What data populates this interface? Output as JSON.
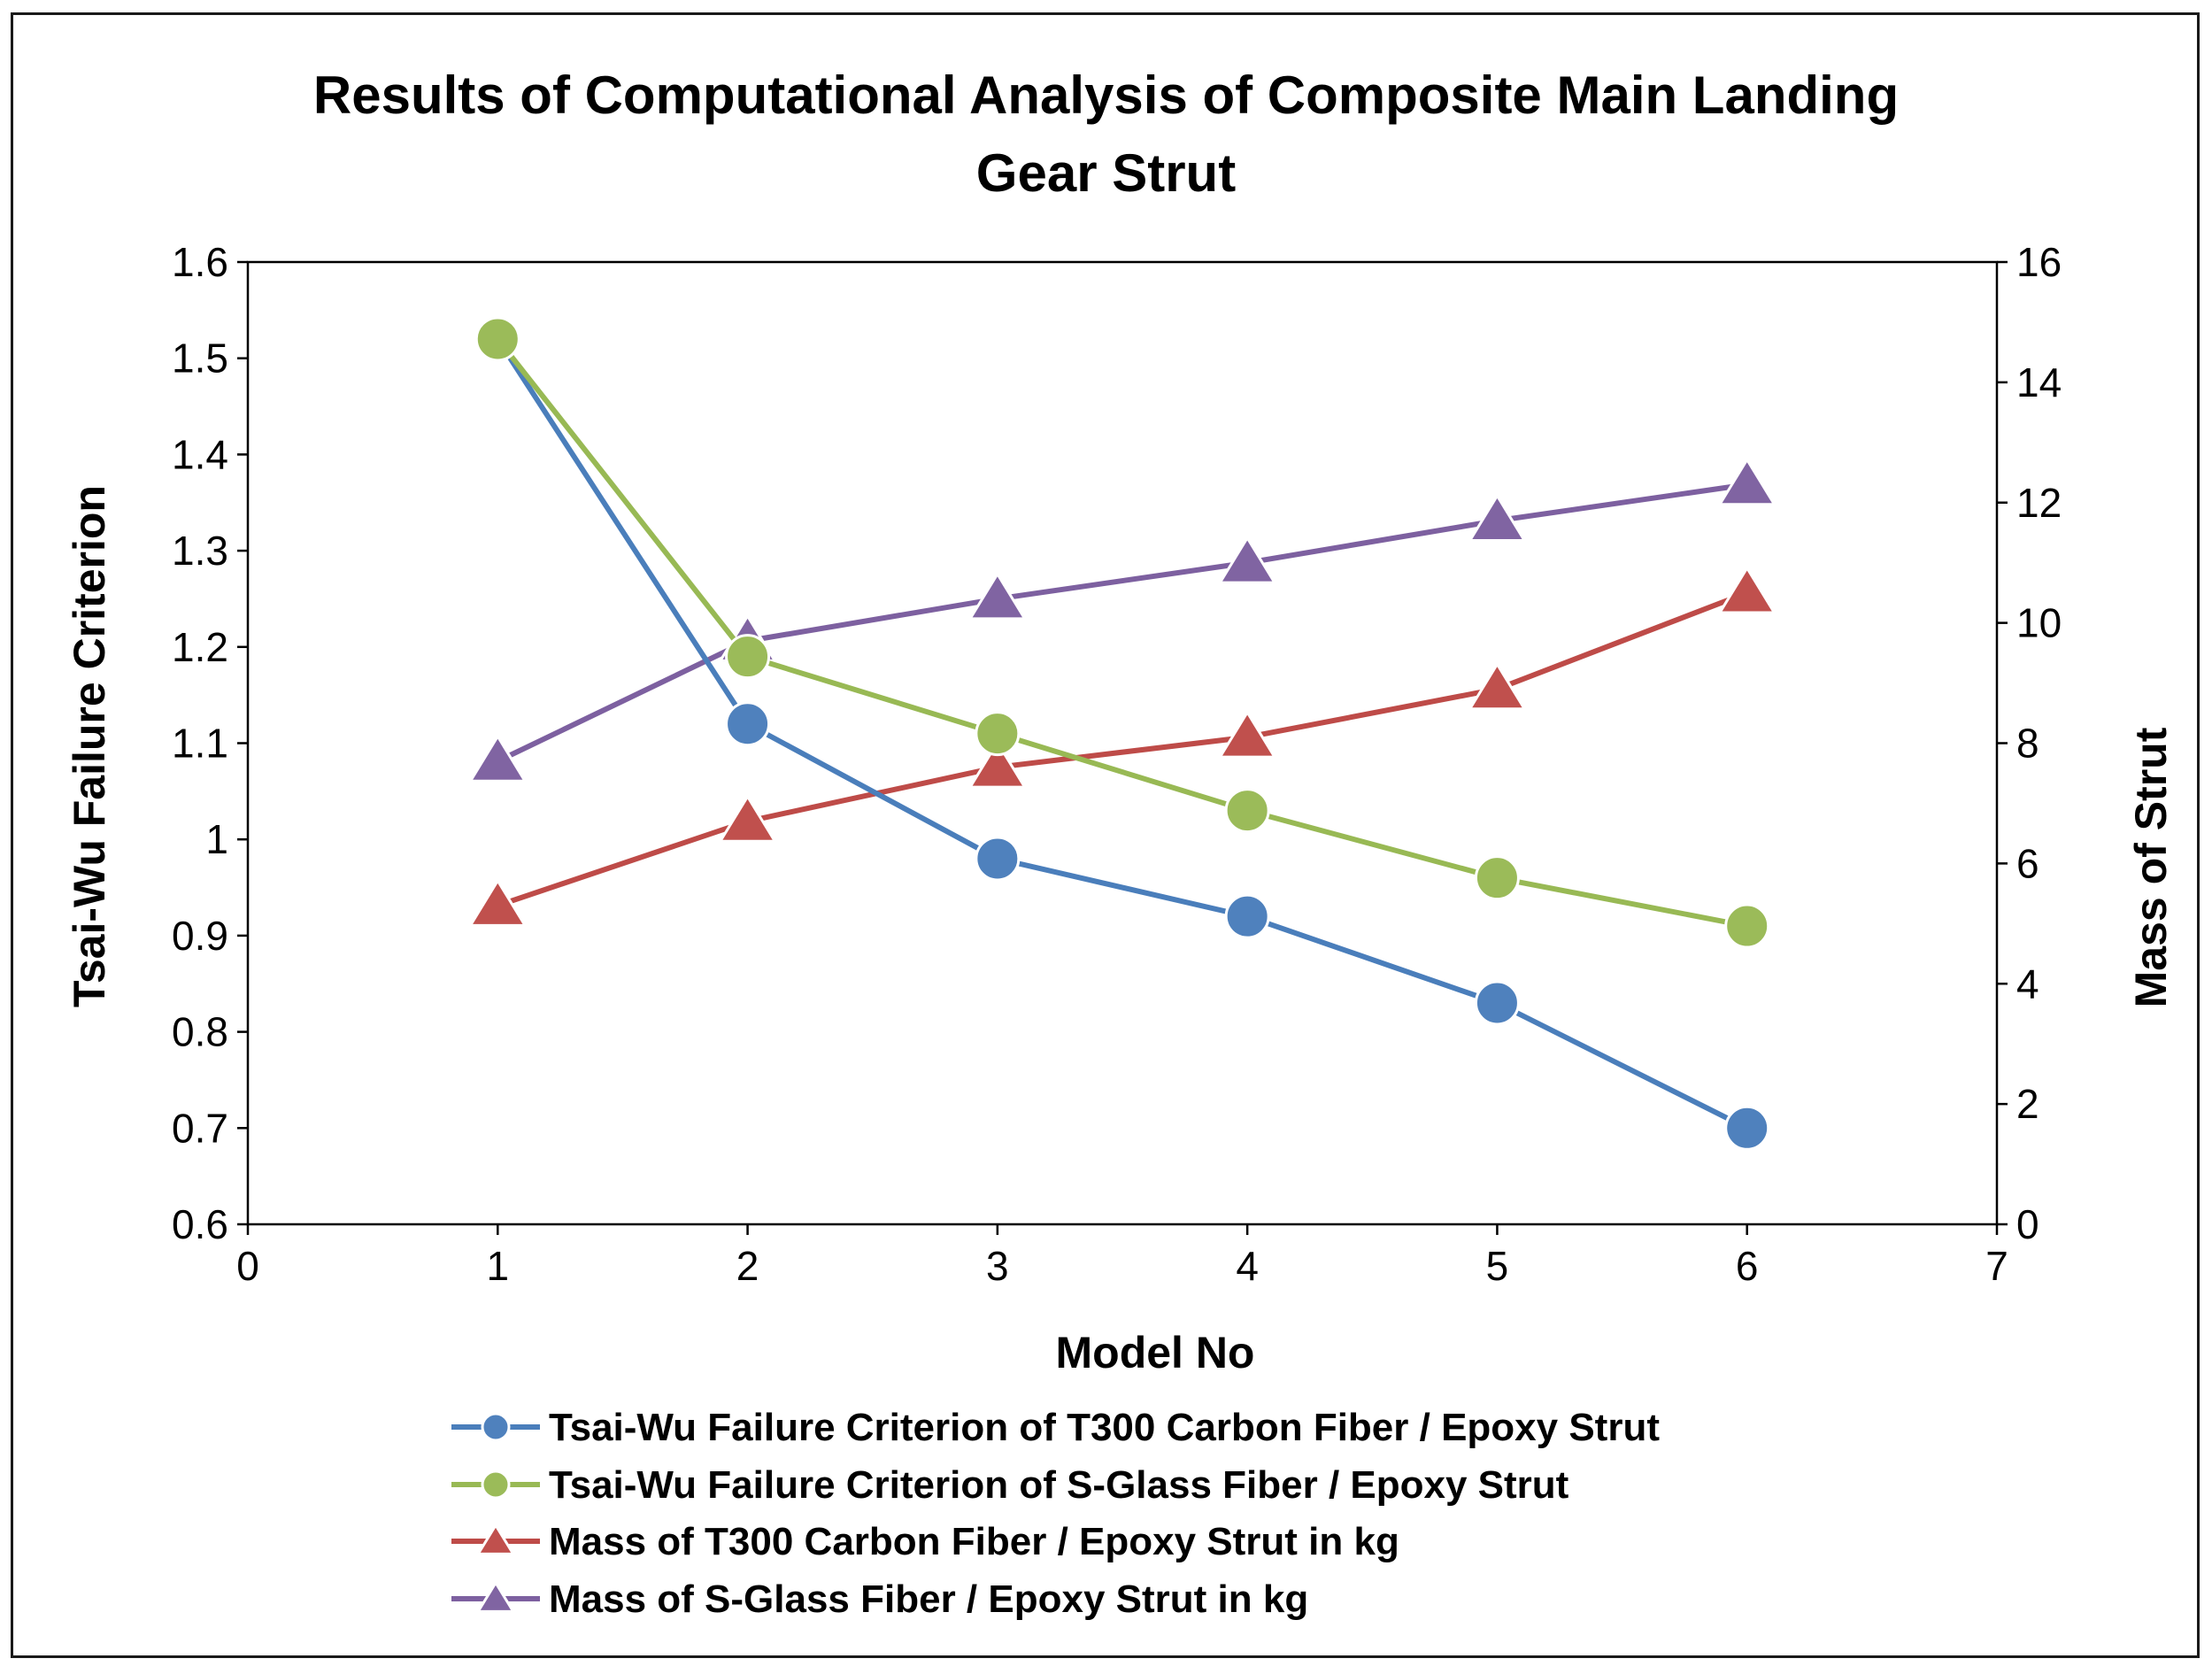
{
  "chart_data": {
    "type": "line",
    "title_line1": "Results of Computational Analysis of Composite Main Landing",
    "title_line2": "Gear Strut",
    "xlabel": "Model No",
    "ylabel": "Tsai-Wu Failure Criterion",
    "y2label": "Mass of Strut",
    "xlim": [
      0,
      7
    ],
    "ylim": [
      0.6,
      1.6
    ],
    "y2lim": [
      0,
      16
    ],
    "xticks": [
      "0",
      "1",
      "2",
      "3",
      "4",
      "5",
      "6",
      "7"
    ],
    "yticks": [
      "0.6",
      "0.7",
      "0.8",
      "0.9",
      "1",
      "1.1",
      "1.2",
      "1.3",
      "1.4",
      "1.5",
      "1.6"
    ],
    "y2ticks": [
      "0",
      "2",
      "4",
      "6",
      "8",
      "10",
      "12",
      "14",
      "16"
    ],
    "grid": false,
    "legend_position": "bottom",
    "x": [
      1,
      2,
      3,
      4,
      5,
      6
    ],
    "series": [
      {
        "name": "Tsai-Wu Failure Criterion of T300 Carbon Fiber / Epoxy Strut",
        "axis": "left",
        "marker": "circle",
        "color": "#4a7ebb",
        "marker_color": "#4f81bd",
        "values": [
          1.52,
          1.12,
          0.98,
          0.92,
          0.83,
          0.7
        ]
      },
      {
        "name": "Tsai-Wu Failure Criterion of S-Glass Fiber / Epoxy Strut",
        "axis": "left",
        "marker": "circle",
        "color": "#98b954",
        "marker_color": "#9bbb59",
        "values": [
          1.52,
          1.19,
          1.11,
          1.03,
          0.96,
          0.91
        ]
      },
      {
        "name": "Mass of T300 Carbon Fiber / Epoxy Strut in kg",
        "axis": "right",
        "marker": "triangle",
        "color": "#be4b48",
        "marker_color": "#c0504d",
        "values": [
          5.3,
          6.7,
          7.6,
          8.1,
          8.9,
          10.5
        ]
      },
      {
        "name": "Mass of S-Glass Fiber / Epoxy Strut in kg",
        "axis": "right",
        "marker": "triangle",
        "color": "#7d60a0",
        "marker_color": "#8064a2",
        "values": [
          7.7,
          9.7,
          10.4,
          11.0,
          11.7,
          12.3
        ]
      }
    ]
  }
}
